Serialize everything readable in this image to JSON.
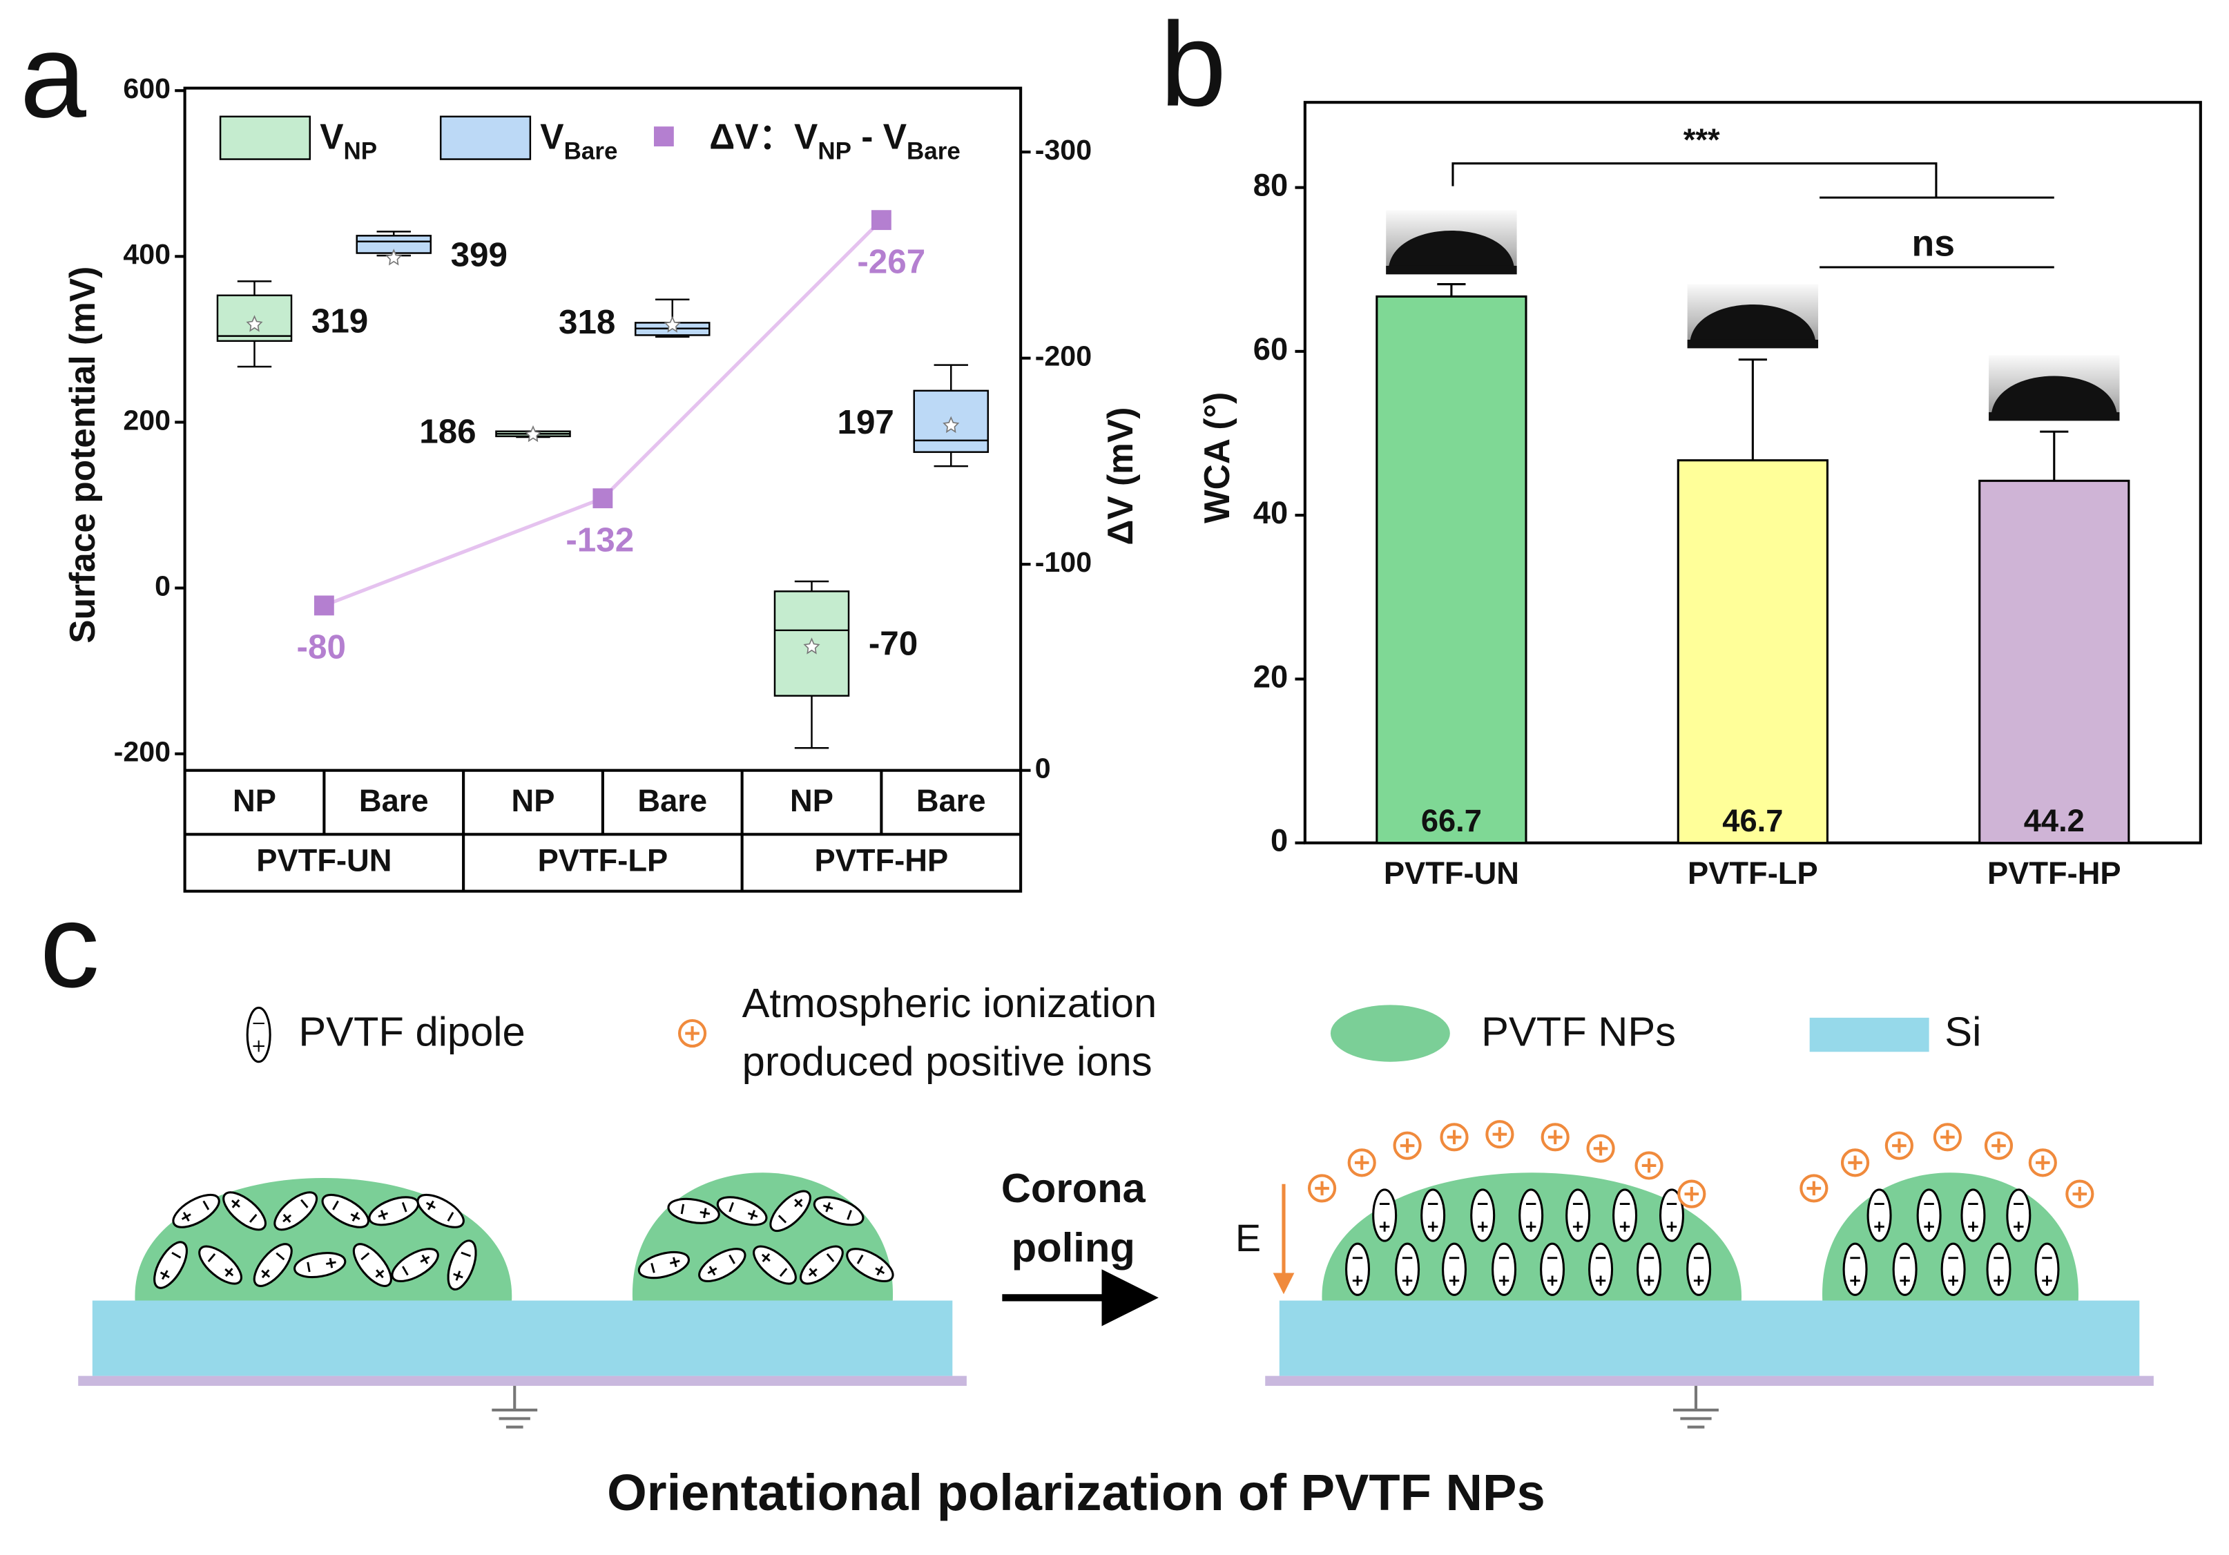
{
  "panel_labels": [
    "a",
    "b",
    "c"
  ],
  "chart_data": [
    {
      "type": "box",
      "ylabel": "Surface potential (mV)",
      "y2label": "ΔV (mV)",
      "ylim": [
        -220,
        603
      ],
      "yticks": [
        -200,
        0,
        200,
        400,
        600
      ],
      "y2lim": [
        0,
        -331
      ],
      "y2ticks": [
        0,
        -100,
        -200,
        -300
      ],
      "categories": [
        "NP",
        "Bare",
        "NP",
        "Bare",
        "NP",
        "Bare"
      ],
      "groups": [
        "PVTF-UN",
        "PVTF-LP",
        "PVTF-HP"
      ],
      "series": [
        {
          "name": "V",
          "name_sub": "NP",
          "color": "#c5eccf",
          "min": [
            267,
            182,
            -193
          ],
          "q1": [
            298,
            183,
            -130
          ],
          "median": [
            304,
            186,
            -51
          ],
          "q3": [
            353,
            189,
            -4
          ],
          "max": [
            370,
            188,
            8
          ],
          "mean": [
            319,
            186,
            -70
          ]
        },
        {
          "name": "V",
          "name_sub": "Bare",
          "color": "#bcd9f6",
          "min": [
            401,
            303,
            147
          ],
          "q1": [
            404,
            305,
            164
          ],
          "median": [
            418,
            313,
            178
          ],
          "q3": [
            425,
            320,
            238
          ],
          "max": [
            430,
            348,
            269
          ],
          "mean": [
            399,
            318,
            197
          ]
        },
        {
          "name": "ΔV：V",
          "name_sub": "NP",
          "name_rest": " - V",
          "name_rest_sub": "Bare",
          "axis": "y2",
          "color": "#b47fd0",
          "line_color": "#e5c2ef",
          "values": [
            -80,
            -132,
            -267
          ]
        }
      ]
    },
    {
      "type": "bar",
      "ylabel": "WCA (°)",
      "categories": [
        "PVTF-UN",
        "PVTF-LP",
        "PVTF-HP"
      ],
      "values": [
        66.7,
        46.7,
        44.2
      ],
      "errors": [
        1.5,
        12.3,
        6.0
      ],
      "colors": [
        "#7fd895",
        "#ffff99",
        "#cfb4d6"
      ],
      "ylim": [
        0,
        90.4
      ],
      "yticks": [
        0,
        20,
        40,
        60,
        80
      ],
      "annotations": [
        "***",
        "ns"
      ]
    }
  ],
  "diagram": {
    "legend": [
      "PVTF dipole",
      "Atmospheric ionization",
      "produced positive ions",
      "PVTF NPs",
      "Si"
    ],
    "arrow_label": [
      "Corona",
      "poling"
    ],
    "field_label": "E",
    "caption": "Orientational polarization of PVTF NPs"
  }
}
